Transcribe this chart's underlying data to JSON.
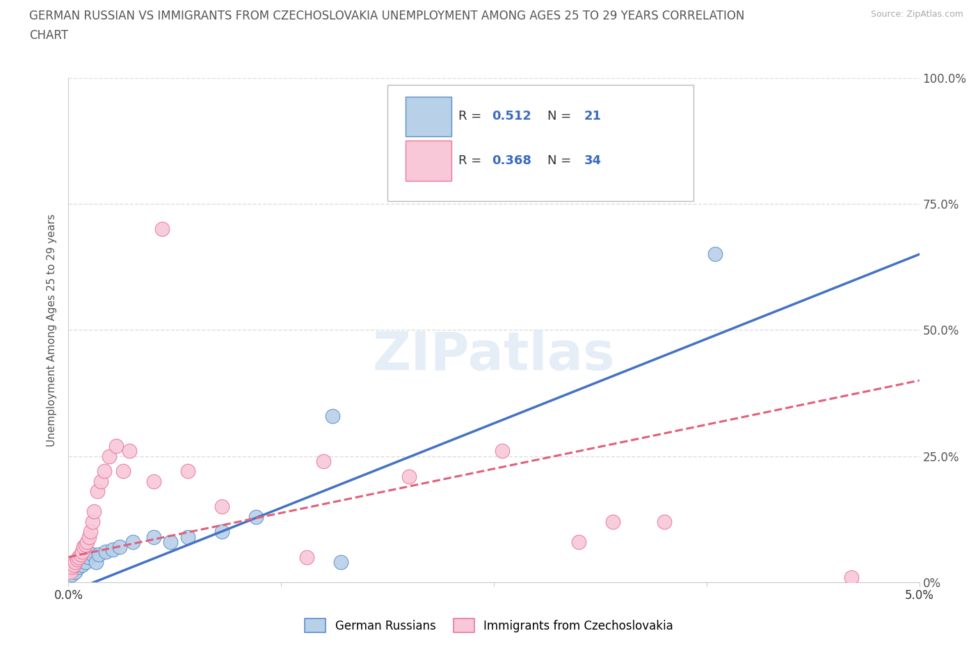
{
  "title_line1": "GERMAN RUSSIAN VS IMMIGRANTS FROM CZECHOSLOVAKIA UNEMPLOYMENT AMONG AGES 25 TO 29 YEARS CORRELATION",
  "title_line2": "CHART",
  "source_text": "Source: ZipAtlas.com",
  "ylabel": "Unemployment Among Ages 25 to 29 years",
  "xlim": [
    0.0,
    5.0
  ],
  "ylim": [
    0.0,
    100.0
  ],
  "xtick_vals": [
    0.0,
    1.25,
    2.5,
    3.75,
    5.0
  ],
  "xtick_labels": [
    "0.0%",
    "",
    "",
    "",
    "5.0%"
  ],
  "ytick_vals": [
    0.0,
    25.0,
    50.0,
    75.0,
    100.0
  ],
  "ytick_labels": [
    "0%",
    "25.0%",
    "50.0%",
    "75.0%",
    "100.0%"
  ],
  "group1_name": "German Russians",
  "group1_color": "#b8d0e8",
  "group1_edge_color": "#5b8ecb",
  "group1_line_color": "#4472c4",
  "group1_R": 0.512,
  "group1_N": 21,
  "group2_name": "Immigrants from Czechoslovakia",
  "group2_color": "#f8c8d8",
  "group2_edge_color": "#e8789a",
  "group2_line_color": "#e0607a",
  "group2_R": 0.368,
  "group2_N": 34,
  "watermark": "ZIPatlas",
  "background_color": "#ffffff",
  "grid_color": "#dddddd",
  "group1_x": [
    0.02,
    0.04,
    0.06,
    0.08,
    0.1,
    0.12,
    0.14,
    0.16,
    0.18,
    0.22,
    0.26,
    0.3,
    0.38,
    0.5,
    0.6,
    0.7,
    0.9,
    1.1,
    1.55,
    1.6,
    3.8
  ],
  "group1_y": [
    1.5,
    2.0,
    3.0,
    3.5,
    4.0,
    5.0,
    5.5,
    4.0,
    5.5,
    6.0,
    6.5,
    7.0,
    8.0,
    9.0,
    8.0,
    9.0,
    10.0,
    13.0,
    33.0,
    4.0,
    65.0
  ],
  "group2_x": [
    0.01,
    0.02,
    0.03,
    0.04,
    0.05,
    0.06,
    0.07,
    0.08,
    0.09,
    0.1,
    0.11,
    0.12,
    0.13,
    0.14,
    0.15,
    0.17,
    0.19,
    0.21,
    0.24,
    0.28,
    0.32,
    0.36,
    0.5,
    0.55,
    0.7,
    0.9,
    1.4,
    1.5,
    2.0,
    2.55,
    3.0,
    3.2,
    3.5,
    4.6
  ],
  "group2_y": [
    2.0,
    3.0,
    3.5,
    4.0,
    4.5,
    5.0,
    5.5,
    6.0,
    7.0,
    7.5,
    8.0,
    9.0,
    10.0,
    12.0,
    14.0,
    18.0,
    20.0,
    22.0,
    25.0,
    27.0,
    22.0,
    26.0,
    20.0,
    70.0,
    22.0,
    15.0,
    5.0,
    24.0,
    21.0,
    26.0,
    8.0,
    12.0,
    12.0,
    1.0
  ],
  "line1_x0": 0.0,
  "line1_y0": -2.0,
  "line1_x1": 5.0,
  "line1_y1": 65.0,
  "line2_x0": 0.0,
  "line2_y0": 5.0,
  "line2_x1": 5.0,
  "line2_y1": 40.0
}
